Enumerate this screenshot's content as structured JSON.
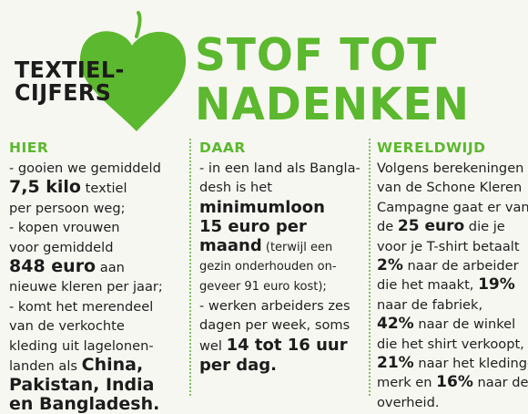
{
  "header": {
    "kicker_line1": "TEXTIEL-",
    "kicker_line2": "CIJFERS",
    "title_line1": "STOF TOT",
    "title_line2": "NADENKEN"
  },
  "colors": {
    "accent": "#5cb82e",
    "text": "#1f1f1f",
    "background": "#f7f7f2"
  },
  "hier": {
    "heading": "HIER",
    "l1": "- gooien we gemiddeld",
    "amount": "7,5 kilo",
    "l2b": " textiel",
    "l3": "per persoon weg;",
    "l4": "- kopen vrouwen",
    "l5": "voor gemiddeld",
    "spend": "848 euro",
    "l6b": " aan",
    "l7": "nieuwe kleren per jaar;",
    "l8": "- komt het merendeel",
    "l9": "van de verkochte",
    "l10": "kleding uit lagelonen-",
    "l11a": "landen als ",
    "c1": "China,",
    "c2": "Pakistan, India",
    "c3": "en Bangladesh."
  },
  "daar": {
    "heading": "DAAR",
    "l1": "- in een land als Bangla-",
    "l2": "desh is het",
    "min1": "minimumloon",
    "min2": "15 euro per",
    "min3a": "maand",
    "min3b": " (terwijl een",
    "l4": "gezin onderhouden on-",
    "l5": "geveer 91 euro kost);",
    "l6": "- werken arbeiders zes",
    "l7": "dagen per week, soms",
    "l8a": "wel ",
    "hours1": "14 tot 16 uur",
    "hours2": "per dag."
  },
  "wereldwijd": {
    "heading": "WERELDWIJD",
    "l1": "Volgens berekeningen",
    "l2": "van de Schone Kleren",
    "l3": "Campagne gaat er van",
    "l4a": "de ",
    "price": "25 euro",
    "l4b": " die je",
    "l5": "voor je T-shirt betaalt",
    "p1": "2%",
    "l6b": " naar de arbeider",
    "l7a": "die het maakt, ",
    "p2": "19%",
    "l8": "naar de fabriek,",
    "p3": "42%",
    "l9b": " naar de winkel",
    "l10": "die het shirt verkoopt,",
    "p4": "21%",
    "l11b": " naar het kleding-",
    "l12a": "merk en ",
    "p5": "16%",
    "l12b": " naar de",
    "l13": "overheid."
  }
}
